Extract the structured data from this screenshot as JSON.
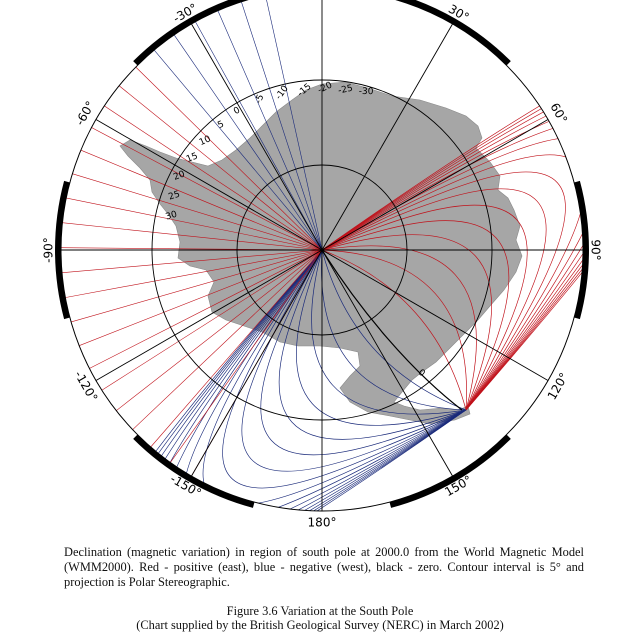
{
  "figure": {
    "longitude_labels": [
      {
        "angle": -30,
        "text": "-30°"
      },
      {
        "angle": 30,
        "text": "30°"
      },
      {
        "angle": -60,
        "text": "-60°"
      },
      {
        "angle": 60,
        "text": "60°"
      },
      {
        "angle": -90,
        "text": "-90°"
      },
      {
        "angle": 90,
        "text": "90°"
      },
      {
        "angle": -120,
        "text": "-120°"
      },
      {
        "angle": 120,
        "text": "120°"
      },
      {
        "angle": -150,
        "text": "-150°"
      },
      {
        "angle": 150,
        "text": "150°"
      },
      {
        "angle": 180,
        "text": "180°"
      }
    ],
    "red_contour_labels": [
      "0",
      "5",
      "10",
      "15",
      "20",
      "25",
      "30"
    ],
    "blue_contour_labels": [
      "-5",
      "-10",
      "-15",
      "-20",
      "-25",
      "-30"
    ],
    "zero_line_label": "0",
    "colors": {
      "positive": "#c0121b",
      "negative": "#1a2a7a",
      "zero": "#000000",
      "land": "#a6a6a6",
      "graticule": "#000000"
    }
  },
  "caption": "Declination (magnetic variation) in region of south pole at 2000.0 from the World Magnetic Model (WMM2000).  Red - positive (east), blue - negative (west), black - zero.  Contour interval is 5° and projection is Polar Stereographic.",
  "figure_title": "Figure 3.6  Variation at the South Pole",
  "figure_credit": "(Chart supplied by the British Geological Survey (NERC) in March 2002)"
}
